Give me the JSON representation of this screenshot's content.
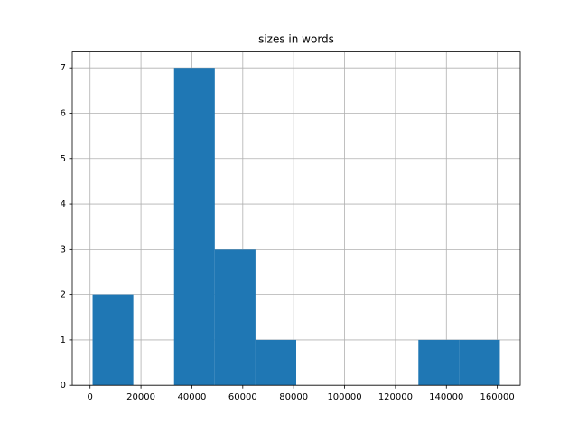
{
  "chart_data": {
    "type": "histogram",
    "title": "sizes in words",
    "bins": [
      1000,
      17000,
      33000,
      49000,
      65000,
      81000,
      97000,
      113000,
      129000,
      145000,
      161000
    ],
    "counts": [
      2,
      0,
      7,
      3,
      1,
      0,
      0,
      0,
      1,
      1
    ],
    "color": "#1f77b4",
    "xlim": [
      -7000,
      169000
    ],
    "xticks": [
      0,
      20000,
      40000,
      60000,
      80000,
      100000,
      120000,
      140000,
      160000
    ],
    "ylim": [
      0,
      7.35
    ],
    "yticks": [
      0,
      1,
      2,
      3,
      4,
      5,
      6,
      7
    ],
    "grid": true
  }
}
